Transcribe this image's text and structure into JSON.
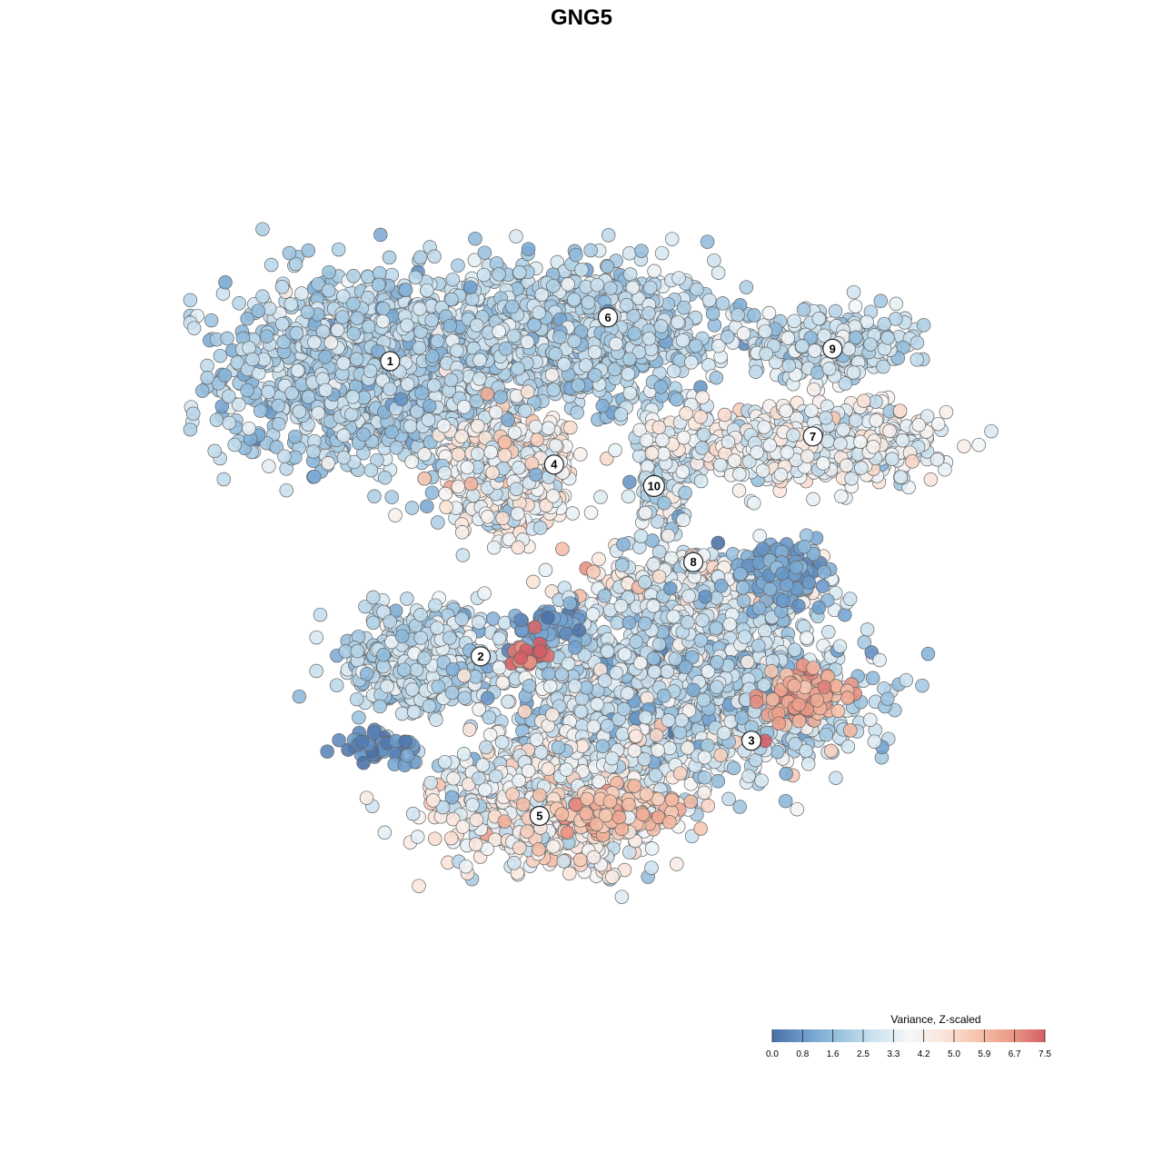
{
  "chart_data": {
    "type": "scatter",
    "title": "GNG5",
    "xlabel": "",
    "ylabel": "",
    "xlim": [
      0,
      100
    ],
    "ylim": [
      0,
      100
    ],
    "grid": false,
    "legend": {
      "title": "Variance, Z-scaled",
      "placement": "bottom-right",
      "ticks": [
        "0.0",
        "0.8",
        "1.6",
        "2.5",
        "3.3",
        "4.2",
        "5.0",
        "5.9",
        "6.7",
        "7.5"
      ],
      "range": [
        0,
        7.5
      ],
      "colors": [
        "#4a6fa5",
        "#6e9fcf",
        "#9cc4e0",
        "#cde2ef",
        "#f4f7f9",
        "#fbe5da",
        "#f6c4ad",
        "#eb9b86",
        "#d55f66"
      ]
    },
    "clusters": [
      {
        "label": "1",
        "x": 22.5,
        "y": 75.2,
        "sx": 11.5,
        "sy": 7.5,
        "n": 1400,
        "value": 2.3,
        "spread": 0.6
      },
      {
        "label": "6",
        "x": 46.5,
        "y": 79.5,
        "sx": 11.0,
        "sy": 5.2,
        "n": 1000,
        "value": 2.4,
        "spread": 0.6
      },
      {
        "label": "4",
        "x": 38.0,
        "y": 63.0,
        "sx": 4.8,
        "sy": 5.0,
        "n": 500,
        "value": 3.9,
        "spread": 0.9
      },
      {
        "label": "10",
        "x": 56.5,
        "y": 61.0,
        "sx": 2.0,
        "sy": 4.5,
        "n": 120,
        "value": 2.9,
        "spread": 0.8
      },
      {
        "label": "9",
        "x": 75.0,
        "y": 78.0,
        "sx": 6.8,
        "sy": 2.6,
        "n": 320,
        "value": 2.8,
        "spread": 0.6
      },
      {
        "label": "7",
        "x": 72.5,
        "y": 66.0,
        "sx": 10.5,
        "sy": 3.0,
        "n": 650,
        "value": 3.6,
        "spread": 0.8
      },
      {
        "label": "8",
        "x": 62.0,
        "y": 49.0,
        "sx": 9.0,
        "sy": 2.5,
        "n": 550,
        "value": 3.6,
        "spread": 1.0
      },
      {
        "label": "2",
        "x": 28.5,
        "y": 40.0,
        "sx": 6.0,
        "sy": 3.8,
        "n": 500,
        "value": 2.6,
        "spread": 0.6
      },
      {
        "label": "3",
        "x": 58.0,
        "y": 36.5,
        "sx": 12.5,
        "sy": 6.5,
        "n": 1800,
        "value": 2.6,
        "spread": 0.9
      },
      {
        "label": "5",
        "x": 44.0,
        "y": 23.0,
        "sx": 8.5,
        "sy": 5.0,
        "n": 900,
        "value": 3.7,
        "spread": 0.9
      }
    ],
    "cluster_label_positions": [
      {
        "label": "1",
        "x": 24.4,
        "y": 76.1
      },
      {
        "label": "6",
        "x": 49.9,
        "y": 81.4
      },
      {
        "label": "4",
        "x": 43.6,
        "y": 63.6
      },
      {
        "label": "10",
        "x": 55.3,
        "y": 61.0
      },
      {
        "label": "9",
        "x": 76.2,
        "y": 77.6
      },
      {
        "label": "7",
        "x": 73.9,
        "y": 67.0
      },
      {
        "label": "8",
        "x": 59.9,
        "y": 51.8
      },
      {
        "label": "2",
        "x": 35.0,
        "y": 40.4
      },
      {
        "label": "3",
        "x": 66.7,
        "y": 30.2
      },
      {
        "label": "5",
        "x": 41.9,
        "y": 21.1
      }
    ],
    "hotspots": [
      {
        "x": 40.5,
        "y": 40.5,
        "sx": 1.8,
        "sy": 1.5,
        "n": 25,
        "value": 7.3
      },
      {
        "x": 72.5,
        "y": 35.5,
        "sx": 4.0,
        "sy": 2.2,
        "n": 120,
        "value": 6.3
      },
      {
        "x": 49.5,
        "y": 21.5,
        "sx": 6.0,
        "sy": 2.2,
        "n": 160,
        "value": 5.6
      }
    ],
    "dark_patches": [
      {
        "x": 23.5,
        "y": 29.5,
        "sx": 3.5,
        "sy": 1.3,
        "n": 50,
        "value": 0.4
      },
      {
        "x": 70.0,
        "y": 50.5,
        "sx": 4.0,
        "sy": 2.5,
        "n": 120,
        "value": 1.2
      },
      {
        "x": 43.5,
        "y": 44.0,
        "sx": 2.5,
        "sy": 1.8,
        "n": 60,
        "value": 1.0
      }
    ]
  }
}
